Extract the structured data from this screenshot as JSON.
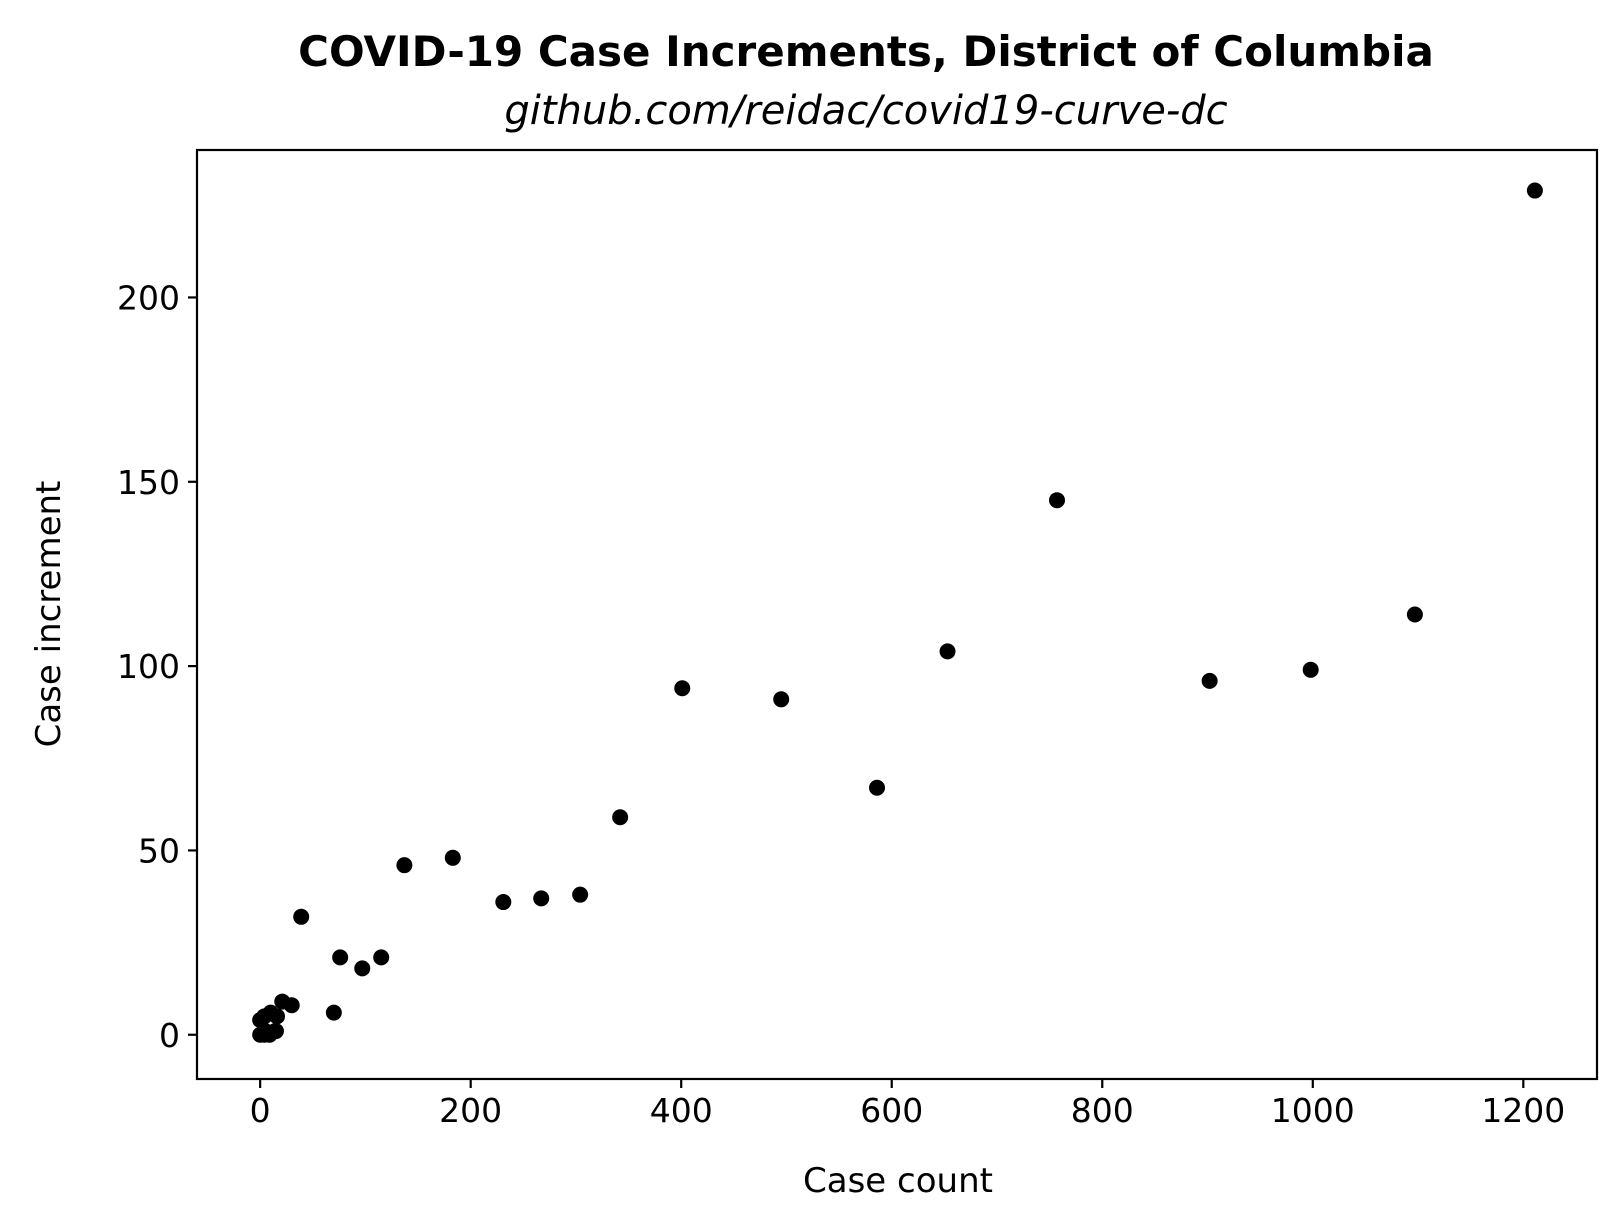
{
  "chart_data": {
    "type": "scatter",
    "title": "COVID-19 Case Increments, District of Columbia",
    "subtitle": "github.com/reidac/covid19-curve-dc",
    "xlabel": "Case count",
    "ylabel": "Case increment",
    "xlim": [
      -60,
      1270
    ],
    "ylim": [
      -12,
      240
    ],
    "xticks": [
      0,
      200,
      400,
      600,
      800,
      1000,
      1200
    ],
    "yticks": [
      0,
      50,
      100,
      150,
      200
    ],
    "marker_color": "#000000",
    "grid": false,
    "points": [
      {
        "x": 0,
        "y": 0
      },
      {
        "x": 0,
        "y": 4
      },
      {
        "x": 4,
        "y": 0
      },
      {
        "x": 4,
        "y": 5
      },
      {
        "x": 5,
        "y": 1
      },
      {
        "x": 9,
        "y": 0
      },
      {
        "x": 10,
        "y": 6
      },
      {
        "x": 14,
        "y": 1
      },
      {
        "x": 15,
        "y": 1
      },
      {
        "x": 16,
        "y": 5
      },
      {
        "x": 21,
        "y": 9
      },
      {
        "x": 30,
        "y": 8
      },
      {
        "x": 39,
        "y": 32
      },
      {
        "x": 70,
        "y": 6
      },
      {
        "x": 76,
        "y": 21
      },
      {
        "x": 97,
        "y": 18
      },
      {
        "x": 115,
        "y": 21
      },
      {
        "x": 137,
        "y": 46
      },
      {
        "x": 183,
        "y": 48
      },
      {
        "x": 231,
        "y": 36
      },
      {
        "x": 267,
        "y": 37
      },
      {
        "x": 304,
        "y": 38
      },
      {
        "x": 342,
        "y": 59
      },
      {
        "x": 401,
        "y": 94
      },
      {
        "x": 495,
        "y": 91
      },
      {
        "x": 586,
        "y": 67
      },
      {
        "x": 653,
        "y": 104
      },
      {
        "x": 757,
        "y": 145
      },
      {
        "x": 902,
        "y": 96
      },
      {
        "x": 998,
        "y": 99
      },
      {
        "x": 1097,
        "y": 114
      },
      {
        "x": 1211,
        "y": 229
      }
    ]
  }
}
